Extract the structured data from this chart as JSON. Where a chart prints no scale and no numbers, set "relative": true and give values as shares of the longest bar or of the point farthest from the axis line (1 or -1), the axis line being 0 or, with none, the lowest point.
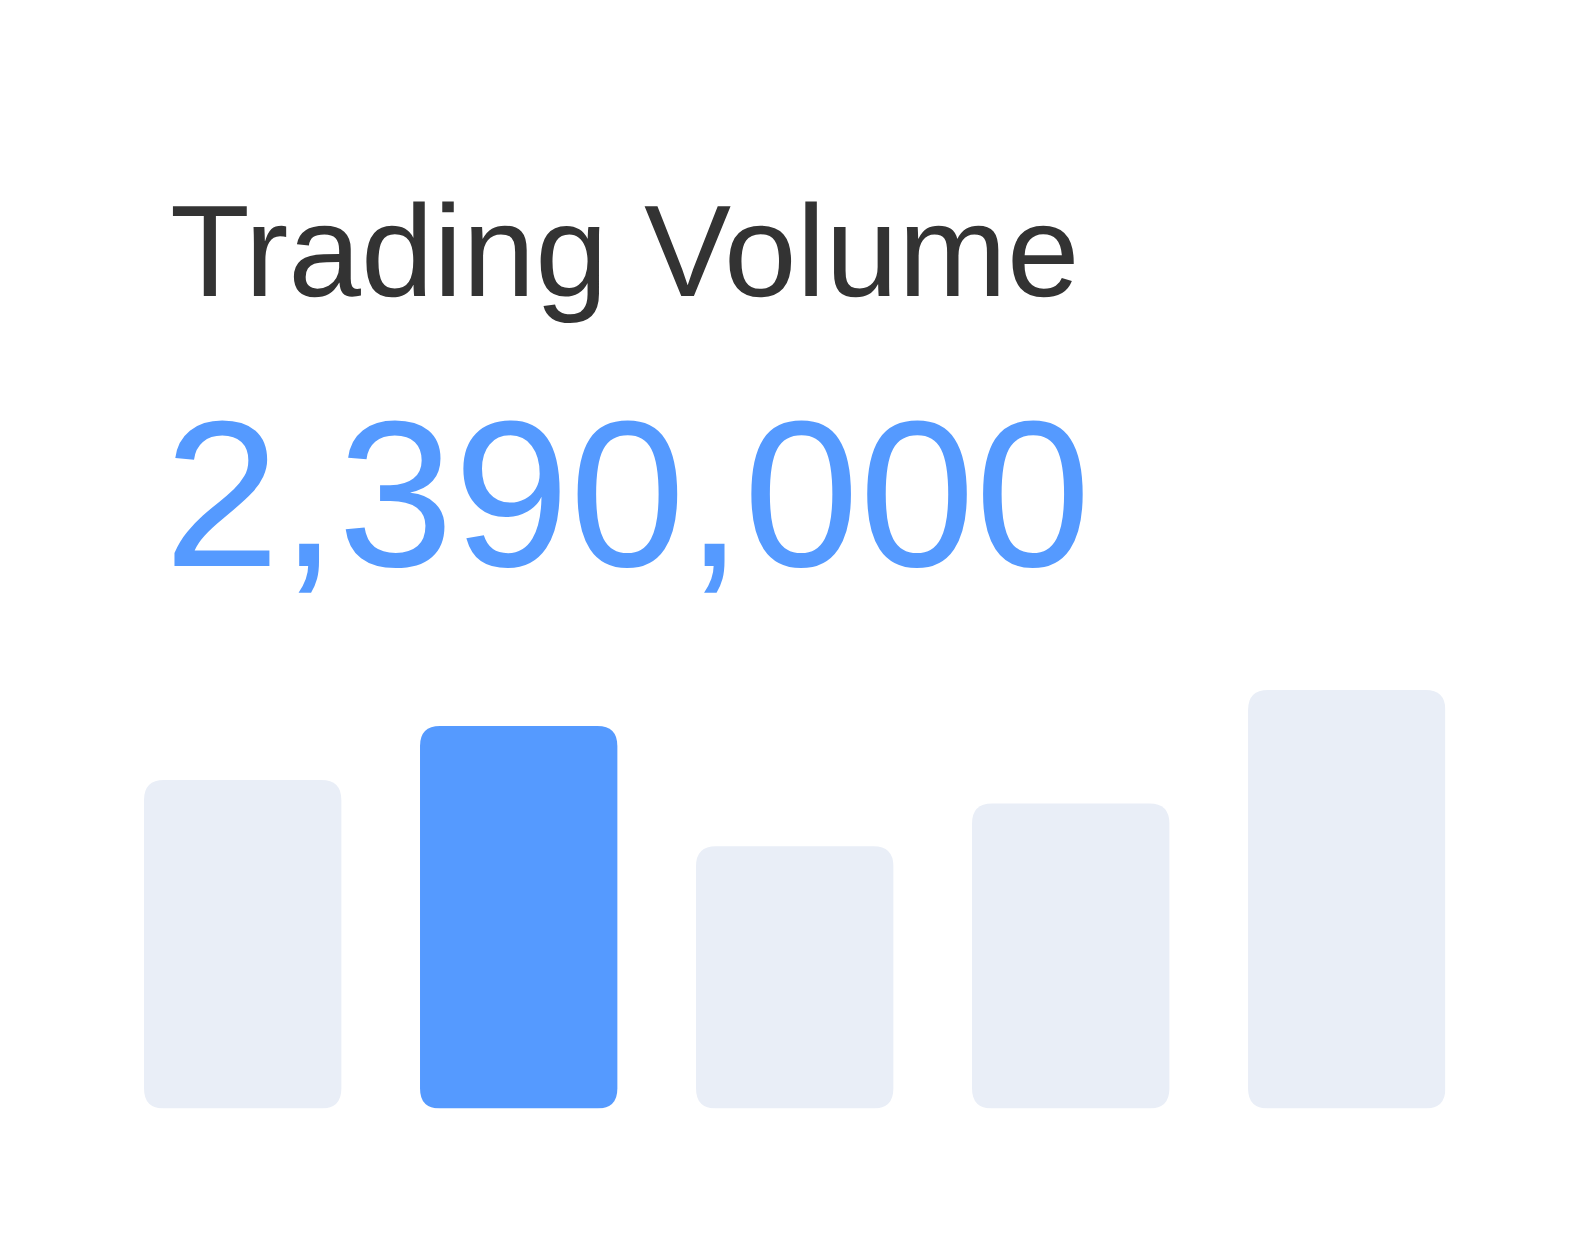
{
  "chart_data": {
    "type": "bar",
    "title": "Trading Volume",
    "subtitle": "2,390,000",
    "categories": [
      null,
      null,
      null,
      null,
      null
    ],
    "values": [
      0.785,
      0.914,
      0.627,
      0.729,
      1
    ],
    "colors": [
      "#e9eef7",
      "#559aff",
      "#e9eef7",
      "#e9eef7",
      "#e9eef7"
    ],
    "relative": true
  }
}
